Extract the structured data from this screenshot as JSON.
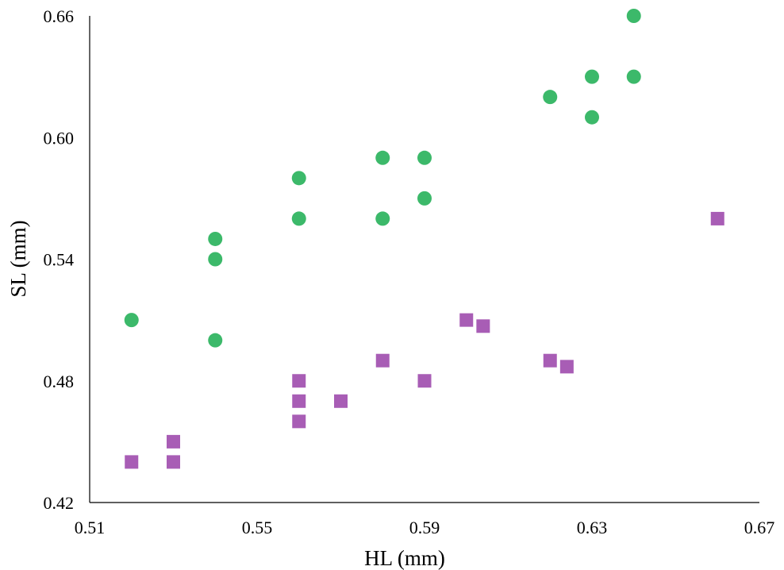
{
  "chart_data": {
    "type": "scatter",
    "title": "",
    "xlabel": "HL (mm)",
    "ylabel": "SL (mm)",
    "xlim": [
      0.51,
      0.67
    ],
    "ylim": [
      0.42,
      0.66
    ],
    "xticks": [
      "0.51",
      "0.55",
      "0.59",
      "0.63",
      "0.67"
    ],
    "yticks": [
      "0.42",
      "0.48",
      "0.54",
      "0.60",
      "0.66"
    ],
    "grid": false,
    "legend": "none",
    "series": [
      {
        "marker": "circle",
        "color": "#3cb96a",
        "points": [
          {
            "x": 0.52,
            "y": 0.51
          },
          {
            "x": 0.54,
            "y": 0.55
          },
          {
            "x": 0.54,
            "y": 0.54
          },
          {
            "x": 0.54,
            "y": 0.5
          },
          {
            "x": 0.56,
            "y": 0.58
          },
          {
            "x": 0.56,
            "y": 0.56
          },
          {
            "x": 0.58,
            "y": 0.59
          },
          {
            "x": 0.58,
            "y": 0.56
          },
          {
            "x": 0.59,
            "y": 0.59
          },
          {
            "x": 0.59,
            "y": 0.57
          },
          {
            "x": 0.62,
            "y": 0.62
          },
          {
            "x": 0.63,
            "y": 0.63
          },
          {
            "x": 0.63,
            "y": 0.61
          },
          {
            "x": 0.64,
            "y": 0.66
          },
          {
            "x": 0.64,
            "y": 0.63
          }
        ]
      },
      {
        "marker": "square",
        "color": "#a85db5",
        "points": [
          {
            "x": 0.52,
            "y": 0.44
          },
          {
            "x": 0.53,
            "y": 0.45
          },
          {
            "x": 0.53,
            "y": 0.44
          },
          {
            "x": 0.56,
            "y": 0.48
          },
          {
            "x": 0.56,
            "y": 0.47
          },
          {
            "x": 0.56,
            "y": 0.46
          },
          {
            "x": 0.57,
            "y": 0.47
          },
          {
            "x": 0.58,
            "y": 0.49
          },
          {
            "x": 0.59,
            "y": 0.48
          },
          {
            "x": 0.6,
            "y": 0.51
          },
          {
            "x": 0.604,
            "y": 0.507
          },
          {
            "x": 0.62,
            "y": 0.49
          },
          {
            "x": 0.624,
            "y": 0.487
          },
          {
            "x": 0.66,
            "y": 0.56
          }
        ]
      }
    ]
  }
}
